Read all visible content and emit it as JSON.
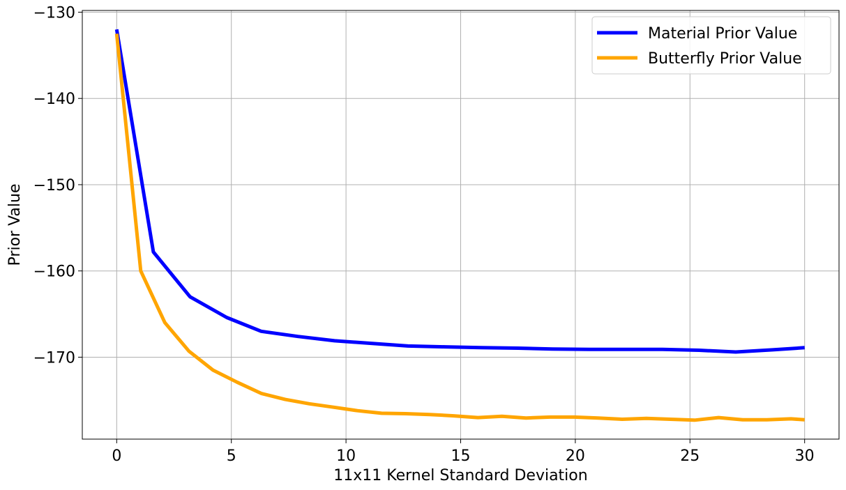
{
  "chart_data": {
    "type": "line",
    "xlabel": "11x11 Kernel Standard Deviation",
    "ylabel": "Prior Value",
    "xlim": [
      -1.5,
      31.5
    ],
    "ylim": [
      -179.5,
      -129.8
    ],
    "xticks": [
      0,
      5,
      10,
      15,
      20,
      25,
      30
    ],
    "yticks": [
      -130,
      -140,
      -150,
      -160,
      -170
    ],
    "ytick_labels": [
      "−130",
      "−140",
      "−150",
      "−160",
      "−170"
    ],
    "grid": true,
    "legend_position": "top-right",
    "series": [
      {
        "name": "Material Prior Value",
        "color": "#0000ff",
        "x": [
          0,
          1.6,
          3.2,
          4.8,
          6.3,
          7.9,
          9.5,
          11.1,
          12.7,
          14.3,
          15.9,
          17.5,
          19,
          20.6,
          22.2,
          23.8,
          25.4,
          27,
          28.6,
          30
        ],
        "y": [
          -132,
          -157.8,
          -163,
          -165.4,
          -167,
          -167.6,
          -168.1,
          -168.4,
          -168.7,
          -168.8,
          -168.9,
          -168.95,
          -169.05,
          -169.1,
          -169.1,
          -169.1,
          -169.2,
          -169.4,
          -169.15,
          -168.9
        ]
      },
      {
        "name": "Butterfly Prior Value",
        "color": "#ffa500",
        "x": [
          0,
          1.05,
          2.1,
          3.15,
          4.2,
          5.25,
          6.3,
          7.35,
          8.4,
          9.45,
          10.5,
          11.55,
          12.6,
          13.65,
          14.7,
          15.75,
          16.8,
          17.85,
          18.9,
          19.95,
          21,
          22.05,
          23.1,
          24.15,
          25.2,
          26.25,
          27.3,
          28.35,
          29.4,
          30
        ],
        "y": [
          -132.5,
          -160,
          -166,
          -169.3,
          -171.5,
          -172.9,
          -174.2,
          -174.9,
          -175.4,
          -175.8,
          -176.2,
          -176.5,
          -176.55,
          -176.65,
          -176.8,
          -177.0,
          -176.85,
          -177.05,
          -176.95,
          -176.95,
          -177.05,
          -177.2,
          -177.1,
          -177.2,
          -177.3,
          -177.0,
          -177.25,
          -177.25,
          -177.15,
          -177.25
        ]
      }
    ]
  }
}
